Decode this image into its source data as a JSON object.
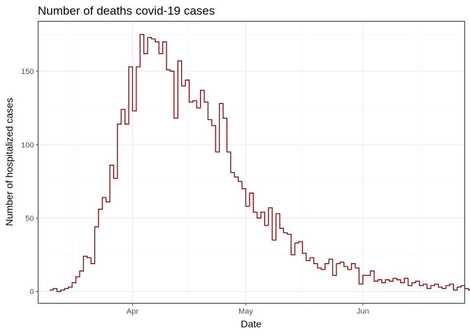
{
  "chart_data": {
    "type": "line",
    "step": true,
    "title": "Number of deaths covid-19 cases",
    "xlabel": "Date",
    "ylabel": "Number of hospitalized cases",
    "x_start_date": "2020-03-10",
    "x_end_date": "2020-06-25",
    "xlim": [
      "2020-03-07",
      "2020-06-28"
    ],
    "ylim": [
      -8,
      184
    ],
    "x_ticks": [
      {
        "date": "2020-04-01",
        "label": "Apr"
      },
      {
        "date": "2020-05-01",
        "label": "May"
      },
      {
        "date": "2020-06-01",
        "label": "Jun"
      }
    ],
    "x_minor_ticks": [
      "2020-03-16",
      "2020-04-16",
      "2020-05-16",
      "2020-06-16"
    ],
    "y_ticks": [
      0,
      50,
      100,
      150
    ],
    "y_minor_ticks": [
      25,
      75,
      125,
      175
    ],
    "grid": true,
    "line_color": "#8B0000",
    "series": [
      {
        "values": [
          1,
          2,
          0,
          1,
          2,
          3,
          6,
          10,
          14,
          24,
          23,
          19,
          44,
          56,
          64,
          61,
          86,
          77,
          114,
          124,
          114,
          153,
          123,
          153,
          175,
          162,
          173,
          172,
          170,
          162,
          170,
          151,
          150,
          118,
          157,
          140,
          144,
          129,
          130,
          125,
          137,
          129,
          117,
          113,
          95,
          128,
          118,
          95,
          81,
          78,
          75,
          70,
          58,
          67,
          54,
          50,
          54,
          45,
          57,
          35,
          53,
          43,
          40,
          39,
          25,
          33,
          34,
          26,
          21,
          23,
          19,
          16,
          15,
          19,
          22,
          11,
          19,
          20,
          17,
          15,
          19,
          16,
          5,
          11,
          11,
          14,
          7,
          8,
          6,
          8,
          7,
          9,
          8,
          6,
          9,
          4,
          6,
          7,
          4,
          5,
          2,
          4,
          5,
          3,
          2,
          4,
          5,
          1,
          3,
          4,
          2,
          1,
          4,
          0,
          1,
          1,
          0
        ]
      }
    ]
  }
}
